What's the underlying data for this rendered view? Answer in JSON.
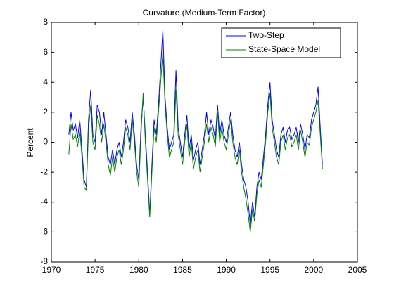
{
  "chart_data": {
    "type": "line",
    "title": "Curvature (Medium-Term Factor)",
    "y_label": "Percent",
    "x": [
      1972,
      1972.25,
      1972.5,
      1972.75,
      1973,
      1973.25,
      1973.5,
      1973.75,
      1974,
      1974.25,
      1974.5,
      1974.75,
      1975,
      1975.25,
      1975.5,
      1975.75,
      1976,
      1976.25,
      1976.5,
      1976.75,
      1977,
      1977.25,
      1977.5,
      1977.75,
      1978,
      1978.25,
      1978.5,
      1978.75,
      1979,
      1979.25,
      1979.5,
      1979.75,
      1980,
      1980.25,
      1980.5,
      1980.75,
      1981,
      1981.25,
      1981.5,
      1981.75,
      1982,
      1982.25,
      1982.5,
      1982.75,
      1983,
      1983.25,
      1983.5,
      1983.75,
      1984,
      1984.25,
      1984.5,
      1984.75,
      1985,
      1985.25,
      1985.5,
      1985.75,
      1986,
      1986.25,
      1986.5,
      1986.75,
      1987,
      1987.25,
      1987.5,
      1987.75,
      1988,
      1988.25,
      1988.5,
      1988.75,
      1989,
      1989.25,
      1989.5,
      1989.75,
      1990,
      1990.25,
      1990.5,
      1990.75,
      1991,
      1991.25,
      1991.5,
      1991.75,
      1992,
      1992.25,
      1992.5,
      1992.75,
      1993,
      1993.25,
      1993.5,
      1993.75,
      1994,
      1994.25,
      1994.5,
      1994.75,
      1995,
      1995.25,
      1995.5,
      1995.75,
      1996,
      1996.25,
      1996.5,
      1996.75,
      1997,
      1997.25,
      1997.5,
      1997.75,
      1998,
      1998.25,
      1998.5,
      1998.75,
      1999,
      1999.25,
      1999.5,
      1999.75,
      2000,
      2000.25,
      2000.5,
      2000.75,
      2001
    ],
    "series": [
      {
        "name": "Two-Step",
        "color": "#0000ff",
        "values": [
          0.5,
          2.0,
          0.8,
          1.2,
          0.3,
          1.5,
          -0.5,
          -2.5,
          -3.0,
          1.5,
          3.5,
          0.5,
          0.0,
          2.5,
          2.0,
          0.5,
          2.0,
          0.5,
          -1.0,
          -1.5,
          -0.5,
          -1.5,
          -0.5,
          0.0,
          -1.0,
          0.0,
          1.5,
          1.0,
          0.0,
          2.0,
          0.5,
          -1.5,
          -2.5,
          1.0,
          3.0,
          0.5,
          -2.0,
          -4.8,
          -1.5,
          1.5,
          0.5,
          2.5,
          5.0,
          7.5,
          3.0,
          1.0,
          -0.5,
          0.0,
          0.5,
          4.8,
          1.0,
          0.0,
          -1.0,
          0.5,
          1.8,
          -0.5,
          0.5,
          -1.2,
          -0.5,
          0.0,
          -1.5,
          -0.5,
          0.5,
          2.0,
          0.5,
          1.5,
          1.0,
          0.2,
          2.5,
          0.5,
          1.5,
          0.5,
          0.0,
          1.0,
          2.0,
          0.5,
          -0.5,
          -1.0,
          0.0,
          -1.5,
          -2.5,
          -3.0,
          -4.0,
          -5.5,
          -4.0,
          -5.0,
          -3.0,
          -2.0,
          -2.5,
          -1.0,
          0.5,
          2.5,
          4.0,
          1.5,
          0.5,
          -0.5,
          -1.0,
          0.5,
          1.0,
          0.0,
          0.8,
          1.0,
          0.2,
          0.5,
          1.0,
          0.0,
          1.2,
          0.5,
          -0.5,
          0.5,
          0.3,
          1.5,
          2.0,
          2.5,
          3.7,
          1.0,
          -1.5
        ]
      },
      {
        "name": "State-Space Model",
        "color": "#008000",
        "values": [
          -0.8,
          1.2,
          0.2,
          0.5,
          -0.3,
          0.8,
          -1.0,
          -3.0,
          -3.2,
          0.8,
          2.5,
          0.0,
          -0.5,
          1.8,
          1.2,
          0.0,
          1.2,
          0.0,
          -1.5,
          -2.2,
          -1.0,
          -2.0,
          -1.0,
          -0.5,
          -1.5,
          -0.5,
          1.0,
          0.5,
          -0.5,
          1.5,
          0.0,
          -2.0,
          -3.0,
          0.5,
          3.3,
          0.0,
          -2.5,
          -5.0,
          -2.0,
          1.0,
          0.0,
          2.0,
          4.0,
          6.0,
          2.5,
          0.5,
          -1.0,
          -0.5,
          0.0,
          3.5,
          0.5,
          -0.5,
          -1.5,
          0.0,
          1.2,
          -1.0,
          0.0,
          -1.8,
          -1.0,
          -0.5,
          -2.0,
          -1.0,
          0.0,
          1.2,
          0.0,
          1.0,
          0.5,
          -0.3,
          2.0,
          0.0,
          1.0,
          0.0,
          -0.5,
          0.5,
          1.5,
          0.0,
          -1.0,
          -1.5,
          -0.5,
          -2.0,
          -3.0,
          -3.8,
          -4.8,
          -6.0,
          -4.5,
          -5.3,
          -3.5,
          -2.5,
          -3.0,
          -1.5,
          0.0,
          2.0,
          3.3,
          1.0,
          0.0,
          -1.0,
          -1.5,
          0.0,
          0.5,
          -0.5,
          0.3,
          0.5,
          -0.3,
          0.0,
          0.5,
          -0.5,
          0.8,
          0.0,
          -1.0,
          0.0,
          -0.2,
          1.0,
          1.5,
          2.0,
          2.8,
          0.5,
          -1.8
        ]
      }
    ],
    "xlim": [
      1970,
      2005
    ],
    "xticks": [
      1970,
      1975,
      1980,
      1985,
      1990,
      1995,
      2000,
      2005
    ],
    "ylim": [
      -8,
      8
    ],
    "yticks": [
      -8,
      -6,
      -4,
      -2,
      0,
      2,
      4,
      6,
      8
    ],
    "grid": false,
    "legend": "northeast"
  }
}
